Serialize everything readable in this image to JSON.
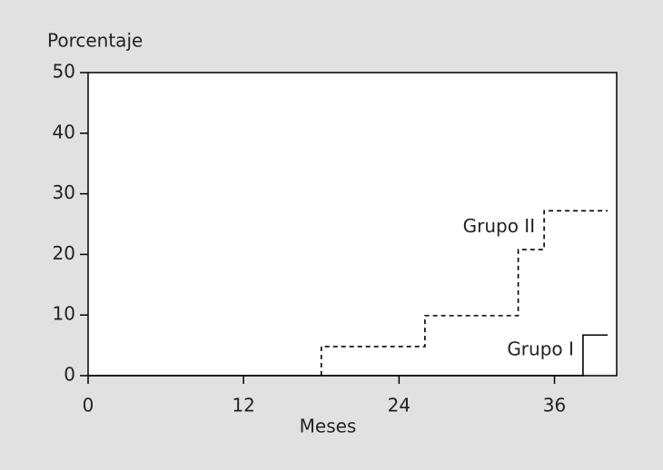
{
  "chart_data": {
    "type": "line",
    "step": true,
    "x_label": "Meses",
    "y_label": "Porcentaje",
    "xlim": [
      0,
      40.8
    ],
    "xticks": [
      0,
      12,
      24,
      36
    ],
    "ylim": [
      0,
      50
    ],
    "yticks": [
      0,
      10,
      20,
      30,
      40,
      50
    ],
    "series": [
      {
        "name": "Grupo I",
        "color": "#000000",
        "dash": false,
        "x": [
          0,
          38.2,
          38.2,
          40.1
        ],
        "values": [
          0,
          0,
          6.7,
          6.7
        ]
      },
      {
        "name": "Grupo II",
        "color": "#000000",
        "dash": true,
        "x": [
          18,
          18,
          26,
          33.2,
          35.2,
          40.1
        ],
        "values": [
          0,
          4.8,
          9.9,
          20.8,
          27.2,
          27.2
        ]
      }
    ]
  }
}
